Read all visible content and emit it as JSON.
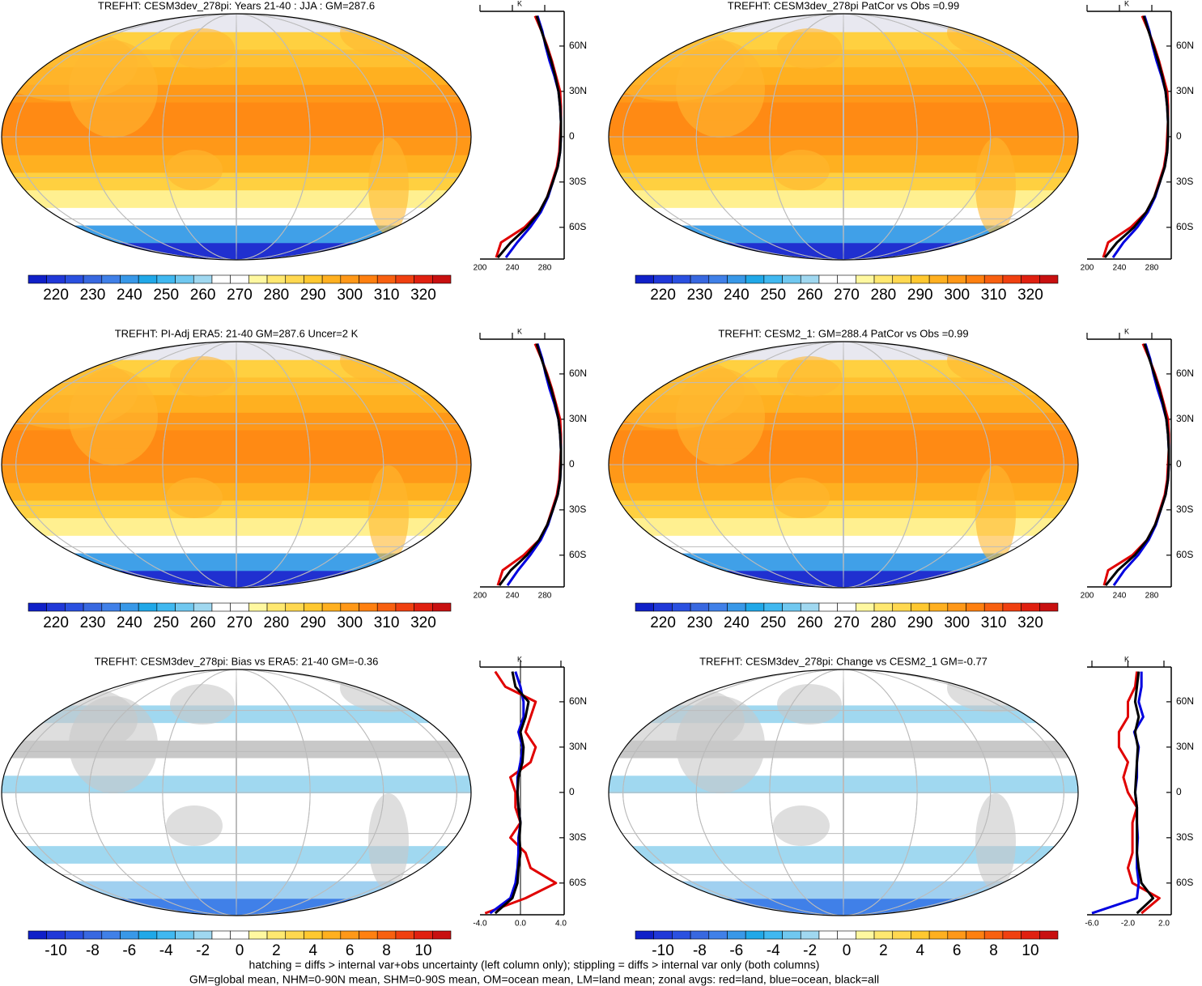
{
  "chart_data": [
    {
      "type": "map",
      "title": "TREFHT: CESM3dev_278pi: Years 21-40 : JJA : GM=287.6",
      "colorbar": {
        "colors": [
          "#1020c8",
          "#2038d8",
          "#2a50e0",
          "#3868e0",
          "#4080e8",
          "#3898e8",
          "#20a8e8",
          "#40b8f0",
          "#70c8f0",
          "#a0d8f0",
          "#ffffff",
          "#ffffff",
          "#fff8a0",
          "#ffe870",
          "#ffd850",
          "#ffc830",
          "#ffb020",
          "#ff9818",
          "#ff8010",
          "#f86010",
          "#f04010",
          "#e02010",
          "#c81010"
        ],
        "lim": [
          212.5,
          327.5
        ],
        "ticks": [
          220,
          230,
          240,
          250,
          260,
          270,
          280,
          290,
          300,
          310,
          320
        ]
      },
      "zonal": {
        "type": "line",
        "x_label": "K",
        "xlim": [
          200,
          304
        ],
        "xticks": [
          200,
          240,
          280
        ],
        "ylim": [
          -81,
          83
        ],
        "yticks": [
          {
            "value": 60,
            "label": "60N"
          },
          {
            "value": 30,
            "label": "30N"
          },
          0,
          {
            "value": -30,
            "label": "30S"
          },
          {
            "value": -60,
            "label": "60S"
          }
        ],
        "lat": [
          -80,
          -70,
          -60,
          -50,
          -40,
          -30,
          -20,
          -10,
          0,
          10,
          20,
          30,
          40,
          50,
          60,
          70,
          80
        ],
        "series": [
          {
            "color": "#e00000",
            "values": [
              220,
              226,
              255,
              273,
              283,
              289,
              295,
              298,
              299,
              300,
              300,
              299,
              294,
              289,
              283,
              276,
              268
            ]
          },
          {
            "color": "#0000e0",
            "values": [
              232,
              246,
              262,
              275,
              284,
              290,
              296,
              299,
              300,
              300,
              299,
              297,
              292,
              286,
              281,
              277,
              271
            ]
          },
          {
            "color": "#000000",
            "values": [
              222,
              238,
              258,
              273,
              283,
              290,
              296,
              299,
              300,
              300,
              299,
              297,
              293,
              288,
              282,
              276,
              270
            ]
          }
        ]
      }
    },
    {
      "type": "map",
      "title": "TREFHT: CESM3dev_278pi PatCor vs Obs =0.99",
      "colorbar": {
        "colors": [
          "#1020c8",
          "#2038d8",
          "#2a50e0",
          "#3868e0",
          "#4080e8",
          "#3898e8",
          "#20a8e8",
          "#40b8f0",
          "#70c8f0",
          "#a0d8f0",
          "#ffffff",
          "#ffffff",
          "#fff8a0",
          "#ffe870",
          "#ffd850",
          "#ffc830",
          "#ffb020",
          "#ff9818",
          "#ff8010",
          "#f86010",
          "#f04010",
          "#e02010",
          "#c81010"
        ],
        "lim": [
          212.5,
          327.5
        ],
        "ticks": [
          220,
          230,
          240,
          250,
          260,
          270,
          280,
          290,
          300,
          310,
          320
        ]
      },
      "zonal": {
        "type": "line",
        "x_label": "K",
        "xlim": [
          200,
          304
        ],
        "xticks": [
          200,
          240,
          280
        ],
        "ylim": [
          -81,
          83
        ],
        "yticks": [
          {
            "value": 60,
            "label": "60N"
          },
          {
            "value": 30,
            "label": "30N"
          },
          0,
          {
            "value": -30,
            "label": "30S"
          },
          {
            "value": -60,
            "label": "60S"
          }
        ],
        "lat": [
          -80,
          -70,
          -60,
          -50,
          -40,
          -30,
          -20,
          -10,
          0,
          10,
          20,
          30,
          40,
          50,
          60,
          70,
          80
        ],
        "series": [
          {
            "color": "#e00000",
            "values": [
              220,
              226,
              254,
              273,
              283,
              289,
              295,
              298,
              299,
              300,
              300,
              299,
              294,
              289,
              283,
              276,
              268
            ]
          },
          {
            "color": "#0000e0",
            "values": [
              232,
              245,
              262,
              275,
              284,
              290,
              296,
              299,
              300,
              300,
              299,
              297,
              292,
              286,
              281,
              277,
              271
            ]
          },
          {
            "color": "#000000",
            "values": [
              222,
              237,
              258,
              273,
              283,
              290,
              296,
              299,
              300,
              300,
              299,
              297,
              293,
              288,
              282,
              276,
              270
            ]
          }
        ]
      }
    },
    {
      "type": "map",
      "title": "TREFHT: PI-Adj ERA5: 21-40 GM=287.6 Uncer=2 K",
      "colorbar": {
        "colors": [
          "#1020c8",
          "#2038d8",
          "#2a50e0",
          "#3868e0",
          "#4080e8",
          "#3898e8",
          "#20a8e8",
          "#40b8f0",
          "#70c8f0",
          "#a0d8f0",
          "#ffffff",
          "#ffffff",
          "#fff8a0",
          "#ffe870",
          "#ffd850",
          "#ffc830",
          "#ffb020",
          "#ff9818",
          "#ff8010",
          "#f86010",
          "#f04010",
          "#e02010",
          "#c81010"
        ],
        "lim": [
          212.5,
          327.5
        ],
        "ticks": [
          220,
          230,
          240,
          250,
          260,
          270,
          280,
          290,
          300,
          310,
          320
        ]
      },
      "zonal": {
        "type": "line",
        "x_label": "K",
        "xlim": [
          200,
          304
        ],
        "xticks": [
          200,
          240,
          280
        ],
        "ylim": [
          -81,
          83
        ],
        "yticks": [
          {
            "value": 60,
            "label": "60N"
          },
          {
            "value": 30,
            "label": "30N"
          },
          0,
          {
            "value": -30,
            "label": "30S"
          },
          {
            "value": -60,
            "label": "60S"
          }
        ],
        "lat": [
          -80,
          -70,
          -60,
          -50,
          -40,
          -30,
          -20,
          -10,
          0,
          10,
          20,
          30,
          40,
          50,
          60,
          70,
          80
        ],
        "series": [
          {
            "color": "#e00000",
            "values": [
              222,
              228,
              254,
              273,
              283,
              289,
              295,
              298,
              299,
              300,
              300,
              299,
              294,
              289,
              283,
              276,
              268
            ]
          },
          {
            "color": "#0000e0",
            "values": [
              234,
              247,
              262,
              275,
              284,
              290,
              296,
              299,
              300,
              300,
              299,
              297,
              292,
              286,
              281,
              277,
              271
            ]
          },
          {
            "color": "#000000",
            "values": [
              224,
              238,
              258,
              273,
              283,
              290,
              296,
              299,
              300,
              300,
              299,
              297,
              293,
              288,
              282,
              276,
              270
            ]
          }
        ]
      }
    },
    {
      "type": "map",
      "title": "TREFHT: CESM2_1: GM=288.4 PatCor vs Obs =0.99",
      "colorbar": {
        "colors": [
          "#1020c8",
          "#2038d8",
          "#2a50e0",
          "#3868e0",
          "#4080e8",
          "#3898e8",
          "#20a8e8",
          "#40b8f0",
          "#70c8f0",
          "#a0d8f0",
          "#ffffff",
          "#ffffff",
          "#fff8a0",
          "#ffe870",
          "#ffd850",
          "#ffc830",
          "#ffb020",
          "#ff9818",
          "#ff8010",
          "#f86010",
          "#f04010",
          "#e02010",
          "#c81010"
        ],
        "lim": [
          212.5,
          327.5
        ],
        "ticks": [
          220,
          230,
          240,
          250,
          260,
          270,
          280,
          290,
          300,
          310,
          320
        ]
      },
      "zonal": {
        "type": "line",
        "x_label": "K",
        "xlim": [
          200,
          304
        ],
        "xticks": [
          200,
          240,
          280
        ],
        "ylim": [
          -81,
          83
        ],
        "yticks": [
          {
            "value": 60,
            "label": "60N"
          },
          {
            "value": 30,
            "label": "30N"
          },
          0,
          {
            "value": -30,
            "label": "30S"
          },
          {
            "value": -60,
            "label": "60S"
          }
        ],
        "lat": [
          -80,
          -70,
          -60,
          -50,
          -40,
          -30,
          -20,
          -10,
          0,
          10,
          20,
          30,
          40,
          50,
          60,
          70,
          80
        ],
        "series": [
          {
            "color": "#e00000",
            "values": [
              221,
              226,
              256,
              274,
              284,
              290,
              296,
              299,
              300,
              301,
              301,
              300,
              295,
              290,
              284,
              277,
              269
            ]
          },
          {
            "color": "#0000e0",
            "values": [
              233,
              246,
              263,
              276,
              285,
              291,
              297,
              300,
              301,
              301,
              300,
              298,
              293,
              287,
              282,
              278,
              272
            ]
          },
          {
            "color": "#000000",
            "values": [
              223,
              238,
              259,
              274,
              284,
              291,
              297,
              300,
              301,
              301,
              300,
              298,
              294,
              289,
              283,
              277,
              271
            ]
          }
        ]
      }
    },
    {
      "type": "map",
      "title": "TREFHT: CESM3dev_278pi: Bias vs ERA5: 21-40 GM=-0.36",
      "colorbar": {
        "colors": [
          "#1020c8",
          "#2038d8",
          "#2a50e0",
          "#3868e0",
          "#4080e8",
          "#3898e8",
          "#20a8e8",
          "#40b8f0",
          "#70c8f0",
          "#a0d8f0",
          "#ffffff",
          "#ffffff",
          "#fff8a0",
          "#ffe870",
          "#ffd850",
          "#ffc830",
          "#ffb020",
          "#ff9818",
          "#ff8010",
          "#f86010",
          "#f04010",
          "#e02010",
          "#c81010"
        ],
        "lim": [
          -11.5,
          11.5
        ],
        "ticks": [
          -10,
          -8,
          -6,
          -4,
          -2,
          0,
          2,
          4,
          6,
          8,
          10
        ]
      },
      "zonal": {
        "type": "line",
        "x_label": "K",
        "xlim": [
          -4,
          4.32
        ],
        "xticks": [
          {
            "value": -4,
            "label": "-4.0"
          },
          {
            "value": 0,
            "label": "0.0"
          },
          {
            "value": 4,
            "label": "4.0"
          }
        ],
        "ylim": [
          -81,
          83
        ],
        "yticks": [
          {
            "value": 60,
            "label": "60N"
          },
          {
            "value": 30,
            "label": "30N"
          },
          0,
          {
            "value": -30,
            "label": "30S"
          },
          {
            "value": -60,
            "label": "60S"
          }
        ],
        "lat": [
          -80,
          -70,
          -60,
          -50,
          -40,
          -30,
          -20,
          -10,
          0,
          10,
          20,
          30,
          40,
          50,
          60,
          70,
          80
        ],
        "series": [
          {
            "color": "#e00000",
            "values": [
              -3.5,
              0.5,
              3.5,
              1,
              0.5,
              -1,
              0,
              -0.5,
              -0.5,
              -1,
              1,
              1.5,
              0.5,
              1,
              1.5,
              -1.5,
              -2.5
            ]
          },
          {
            "color": "#0000e0",
            "values": [
              -3,
              -1,
              -0.5,
              -0.3,
              -0.2,
              -0.2,
              0,
              -0.2,
              -0.3,
              -0.3,
              0,
              0.2,
              -0.2,
              0.3,
              0.3,
              0,
              -0.5
            ]
          },
          {
            "color": "#000000",
            "values": [
              -2.5,
              -0.8,
              -0.3,
              -0.2,
              0,
              -0.1,
              0,
              -0.2,
              -0.3,
              -0.2,
              0.2,
              0.3,
              0,
              0.5,
              0.8,
              -0.5,
              -0.8
            ]
          }
        ]
      }
    },
    {
      "type": "map",
      "title": "TREFHT: CESM3dev_278pi: Change vs CESM2_1 GM=-0.77",
      "colorbar": {
        "colors": [
          "#1020c8",
          "#2038d8",
          "#2a50e0",
          "#3868e0",
          "#4080e8",
          "#3898e8",
          "#20a8e8",
          "#40b8f0",
          "#70c8f0",
          "#a0d8f0",
          "#ffffff",
          "#ffffff",
          "#fff8a0",
          "#ffe870",
          "#ffd850",
          "#ffc830",
          "#ffb020",
          "#ff9818",
          "#ff8010",
          "#f86010",
          "#f04010",
          "#e02010",
          "#c81010"
        ],
        "lim": [
          -11.5,
          11.5
        ],
        "ticks": [
          -10,
          -8,
          -6,
          -4,
          -2,
          0,
          2,
          4,
          6,
          8,
          10
        ]
      },
      "zonal": {
        "type": "line",
        "x_label": "K",
        "xlim": [
          -6.54,
          2.81
        ],
        "xticks": [
          {
            "value": -6,
            "label": "-6.0"
          },
          {
            "value": -2,
            "label": "-2.0"
          },
          {
            "value": 2,
            "label": "2.0"
          }
        ],
        "ylim": [
          -81,
          83
        ],
        "yticks": [
          {
            "value": 60,
            "label": "60N"
          },
          {
            "value": 30,
            "label": "30N"
          },
          0,
          {
            "value": -30,
            "label": "30S"
          },
          {
            "value": -60,
            "label": "60S"
          }
        ],
        "lat": [
          -80,
          -70,
          -60,
          -50,
          -40,
          -30,
          -20,
          -10,
          0,
          10,
          20,
          30,
          40,
          50,
          60,
          70,
          80
        ],
        "series": [
          {
            "color": "#e00000",
            "values": [
              -0.5,
              1.5,
              -1.5,
              -2,
              -1.5,
              -1.5,
              -1.5,
              -1,
              -2,
              -2.5,
              -2,
              -3,
              -3,
              -2,
              -2,
              -1.2,
              -1
            ]
          },
          {
            "color": "#0000e0",
            "values": [
              -6,
              -1,
              -0.8,
              -1,
              -1,
              -0.9,
              -1,
              -1,
              -1.2,
              -1,
              -1,
              -0.8,
              -1.3,
              -0.3,
              -0.8,
              -0.5,
              -0.5
            ]
          },
          {
            "color": "#000000",
            "values": [
              -1,
              0.8,
              -0.5,
              -0.8,
              -1,
              -1,
              -1,
              -1,
              -1.2,
              -1.1,
              -1,
              -0.9,
              -1.2,
              -0.8,
              -1.2,
              -1,
              -0.8
            ]
          }
        ]
      }
    }
  ],
  "notes": [
    "hatching = diffs > internal var+obs uncertainty (left column only); stippling = diffs > internal var only (both columns)",
    "GM=global mean, NHM=0-90N mean, SHM=0-90S mean, OM=ocean mean, LM=land mean; zonal avgs: red=land, blue=ocean, black=all"
  ]
}
